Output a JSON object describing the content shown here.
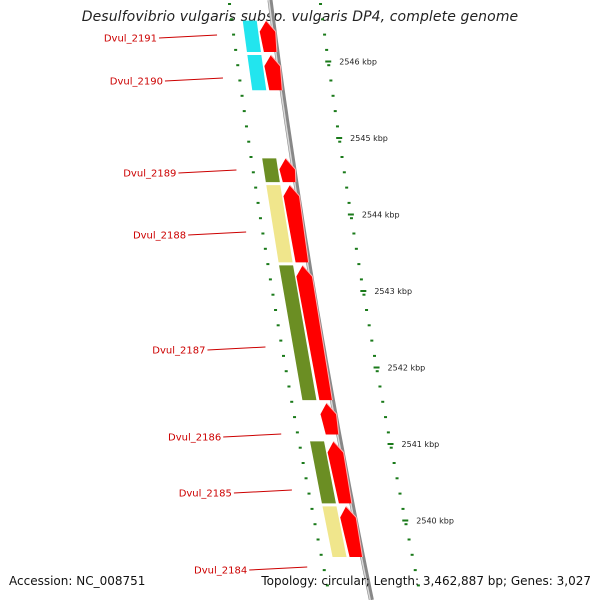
{
  "title": "Desulfovibrio vulgaris subsp. vulgaris DP4, complete genome",
  "footer": {
    "accession": "Accession: NC_008751",
    "summary": "Topology: circular; Length: 3,462,887 bp; Genes: 3,027"
  },
  "colors": {
    "backbone": "#888888",
    "cds_arrow": "#ff0000",
    "cog_cyan": "#22e5ee",
    "cog_olive": "#6b8e23",
    "cog_khaki": "#f0e68c",
    "tick": "#1a7a1a",
    "label_red": "#cc0000"
  },
  "genes": [
    {
      "label": "Dvul_2191",
      "color": "cog_cyan",
      "strand": "+",
      "start_kbp": 2546.75,
      "end_kbp": 2546.3
    },
    {
      "label": "Dvul_2190",
      "color": "cog_cyan",
      "strand": "+",
      "start_kbp": 2546.3,
      "end_kbp": 2545.8
    },
    {
      "label": "Dvul_2189",
      "color": "cog_olive",
      "strand": "+",
      "start_kbp": 2544.95,
      "end_kbp": 2544.6
    },
    {
      "label": "Dvul_2188",
      "color": "cog_khaki",
      "strand": "+",
      "start_kbp": 2544.6,
      "end_kbp": 2543.55
    },
    {
      "label": "Dvul_2187",
      "color": "cog_olive",
      "strand": "+",
      "start_kbp": 2543.55,
      "end_kbp": 2541.75
    },
    {
      "label": "Dvul_2186",
      "color": "none",
      "strand": "+",
      "start_kbp": 2541.75,
      "end_kbp": 2541.3
    },
    {
      "label": "Dvul_2185",
      "color": "cog_olive",
      "strand": "+",
      "start_kbp": 2541.25,
      "end_kbp": 2540.4
    },
    {
      "label": "Dvul_2184",
      "color": "cog_khaki",
      "strand": "+",
      "start_kbp": 2540.4,
      "end_kbp": 2539.7
    }
  ],
  "kbp_marks": [
    {
      "label": "2546 kbp",
      "kbp": 2546
    },
    {
      "label": "2545 kbp",
      "kbp": 2545
    },
    {
      "label": "2544 kbp",
      "kbp": 2544
    },
    {
      "label": "2543 kbp",
      "kbp": 2543
    },
    {
      "label": "2542 kbp",
      "kbp": 2542
    },
    {
      "label": "2541 kbp",
      "kbp": 2541
    },
    {
      "label": "2540 kbp",
      "kbp": 2540
    }
  ]
}
